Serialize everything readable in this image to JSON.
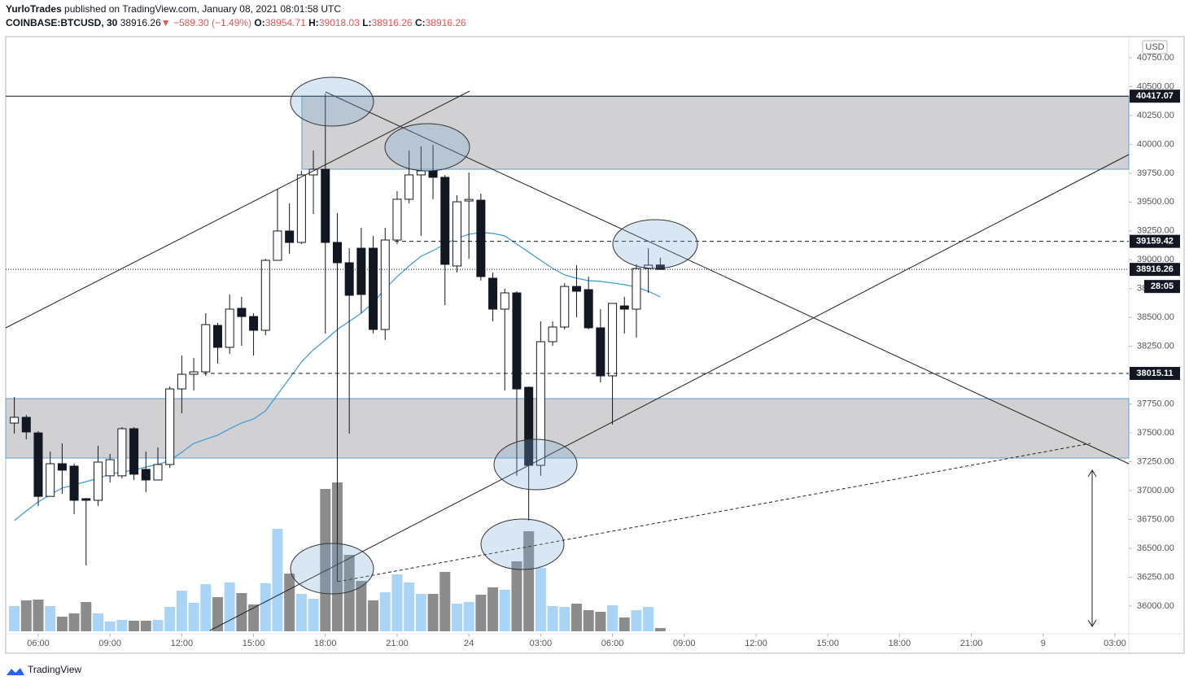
{
  "header": {
    "author": "YurloTrades",
    "published": "published on TradingView.com, January 08, 2021 08:01:58 UTC",
    "symbol": "COINBASE:BTCUSD, 30",
    "last": "38916.26",
    "change": "▼ −589.30 (−1.49%)",
    "ohlc": [
      {
        "label": "O:",
        "value": "38954.71"
      },
      {
        "label": "H:",
        "value": "39018.03"
      },
      {
        "label": "L:",
        "value": "38916.26"
      },
      {
        "label": "C:",
        "value": "38916.26"
      }
    ]
  },
  "footer": {
    "logo": "TradingView"
  },
  "chart_data": {
    "type": "candlestick",
    "currency": "USD",
    "x": [
      5,
      5.5,
      6,
      6.5,
      7,
      7.5,
      8,
      8.5,
      9,
      9.5,
      10,
      10.5,
      11,
      11.5,
      12,
      12.5,
      13,
      13.5,
      14,
      14.5,
      15,
      15.5,
      16,
      16.5,
      17,
      17.5,
      18,
      18.5,
      19,
      19.5,
      20,
      20.5,
      21,
      21.5,
      22,
      22.5,
      23,
      23.5,
      24,
      24.5,
      25,
      25.5,
      26,
      26.5,
      27,
      27.5,
      28,
      28.5,
      29,
      29.5,
      30,
      30.5,
      31,
      31.5,
      32
    ],
    "open": [
      37585,
      37635,
      37500,
      36950,
      37233,
      37212,
      36930,
      36916,
      37128,
      37128,
      37536,
      37184,
      37092,
      37226,
      37881,
      38008,
      38029,
      38431,
      38241,
      38579,
      38508,
      38389,
      38995,
      39249,
      39150,
      39735,
      39784,
      39150,
      38974,
      39100,
      39100,
      38396,
      39171,
      39524,
      39735,
      39770,
      39714,
      38946,
      39509,
      39516,
      38840,
      38572,
      38713,
      37895,
      37219,
      38290,
      38417,
      38769,
      38741,
      38410,
      37994,
      38600,
      38572,
      38924,
      38954.71
    ],
    "high": [
      37811,
      37656,
      37515,
      37339,
      37409,
      37233,
      36937,
      37388,
      37318,
      37550,
      37550,
      37339,
      37374,
      37902,
      38170,
      38149,
      38537,
      38452,
      38699,
      38678,
      38537,
      39009,
      39615,
      39488,
      39770,
      39946,
      40440,
      39404,
      39100,
      39277,
      39206,
      39277,
      39594,
      39946,
      39982,
      39996,
      39735,
      39559,
      39756,
      39573,
      38889,
      38748,
      38727,
      37902,
      38466,
      38466,
      38797,
      38953,
      38854,
      38572,
      38622,
      38678,
      38960,
      39100,
      39018.03
    ],
    "low": [
      37494,
      37445,
      36867,
      36950,
      36972,
      36796,
      36352,
      36867,
      37071,
      37106,
      37092,
      36986,
      37092,
      37198,
      37670,
      37867,
      37994,
      38100,
      38184,
      38255,
      38170,
      38347,
      38995,
      39051,
      39136,
      39396,
      38361,
      36210,
      37494,
      38537,
      38361,
      38304,
      39136,
      39488,
      39206,
      39524,
      38607,
      38889,
      39009,
      38819,
      38466,
      37867,
      37128,
      36740,
      37128,
      38255,
      38396,
      38502,
      38396,
      37938,
      37571,
      38361,
      38326,
      38713,
      38916.26
    ],
    "close": [
      37635,
      37508,
      36950,
      37233,
      37177,
      36916,
      36916,
      37247,
      37268,
      37536,
      37142,
      37092,
      37226,
      37881,
      38008,
      38029,
      38438,
      38241,
      38572,
      38508,
      38389,
      38995,
      39249,
      39150,
      39735,
      39784,
      39150,
      38974,
      38692,
      38699,
      38396,
      39171,
      39524,
      39735,
      39770,
      39714,
      38960,
      39502,
      39523,
      38854,
      38572,
      38713,
      37881,
      37219,
      38290,
      38417,
      38769,
      38727,
      38410,
      37994,
      38622,
      38572,
      38924,
      38953,
      38916.26
    ],
    "volume": [
      31,
      38,
      39,
      31,
      18,
      22,
      36,
      22,
      12,
      14,
      13,
      13,
      14,
      30,
      50,
      35,
      58,
      42,
      60,
      47,
      33,
      59,
      126,
      71,
      46,
      40,
      175,
      183,
      94,
      62,
      38,
      48,
      70,
      60,
      46,
      46,
      73,
      34,
      36,
      45,
      54,
      51,
      86,
      123,
      78,
      31,
      30,
      34,
      26,
      24,
      32,
      17,
      26,
      30,
      4
    ],
    "ma": [
      36740,
      36824,
      36902,
      36965,
      37022,
      37050,
      37078,
      37106,
      37142,
      37163,
      37177,
      37205,
      37226,
      37261,
      37332,
      37409,
      37445,
      37480,
      37536,
      37586,
      37621,
      37691,
      37832,
      37973,
      38114,
      38220,
      38304,
      38396,
      38466,
      38537,
      38629,
      38748,
      38854,
      38946,
      39030,
      39079,
      39136,
      39185,
      39221,
      39235,
      39228,
      39206,
      39136,
      39065,
      38995,
      38925,
      38868,
      38840,
      38819,
      38812,
      38798,
      38784,
      38762,
      38727,
      38678
    ],
    "colors": {
      "up": "#ffffff",
      "down": "#131722",
      "up_volume": "#a9d4f5",
      "down_volume": "#8c8c8c",
      "ma": "#3a9ad9",
      "zone": "#d1d1d3",
      "zone_border": "#5b9fd6"
    },
    "xlim": [
      4.64,
      51.58
    ],
    "xticks": [
      {
        "value": 6,
        "label": "06:00"
      },
      {
        "value": 9,
        "label": "09:00"
      },
      {
        "value": 12,
        "label": "12:00"
      },
      {
        "value": 15,
        "label": "15:00"
      },
      {
        "value": 18,
        "label": "18:00"
      },
      {
        "value": 21,
        "label": "21:00"
      },
      24,
      {
        "value": 27,
        "label": "03:00"
      },
      {
        "value": 30,
        "label": "06:00"
      },
      {
        "value": 33,
        "label": "09:00"
      },
      {
        "value": 36,
        "label": "12:00"
      },
      {
        "value": 39,
        "label": "15:00"
      },
      {
        "value": 42,
        "label": "18:00"
      },
      {
        "value": 45,
        "label": "21:00"
      },
      {
        "value": 48,
        "label": "9"
      },
      {
        "value": 51,
        "label": "03:00"
      }
    ],
    "ylim": [
      35767,
      40933
    ],
    "yticks": [
      {
        "value": 36000,
        "label": "36000.00"
      },
      {
        "value": 36250,
        "label": "36250.00"
      },
      {
        "value": 36500,
        "label": "36500.00"
      },
      {
        "value": 36750,
        "label": "36750.00"
      },
      {
        "value": 37000,
        "label": "37000.00"
      },
      {
        "value": 37250,
        "label": "37250.00"
      },
      {
        "value": 37500,
        "label": "37500.00"
      },
      {
        "value": 37750,
        "label": "37750.00"
      },
      {
        "value": 38000,
        "label": "38000.00"
      },
      {
        "value": 38250,
        "label": "38250.00"
      },
      {
        "value": 38500,
        "label": "38500.00"
      },
      {
        "value": 38750,
        "label": "38750.00"
      },
      {
        "value": 39000,
        "label": "39000.00"
      },
      {
        "value": 39250,
        "label": "39250.00"
      },
      {
        "value": 39500,
        "label": "39500.00"
      },
      {
        "value": 39750,
        "label": "39750.00"
      },
      {
        "value": 40000,
        "label": "40000.00"
      },
      {
        "value": 40250,
        "label": "40250.00"
      },
      {
        "value": 40500,
        "label": "40500.00"
      },
      {
        "value": 40750,
        "label": "40750.00"
      }
    ],
    "zones": [
      {
        "from": 17.02,
        "top": 40417.07,
        "bottom": 39784
      },
      {
        "top": 37797,
        "bottom": 37282
      }
    ],
    "levels": [
      {
        "value": 40417.07,
        "line": "solid"
      },
      {
        "value": 39159.42,
        "line": "dashed",
        "from": 20.9
      },
      {
        "value": 38916.26,
        "line": "dotted"
      },
      {
        "value": 38015.11,
        "line": "dashed",
        "from": 12.9
      }
    ],
    "countdown": "28:05"
  }
}
